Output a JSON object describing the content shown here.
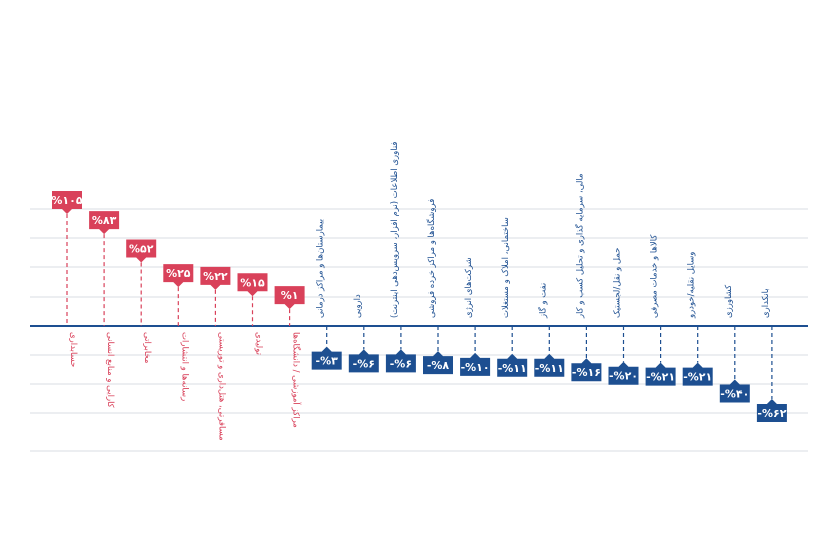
{
  "chart_data": {
    "type": "bar",
    "categories": [
      "حسابداری",
      "کارایی و منابع انسانی",
      "مخابراتی",
      "رسانه‌ها و انتشارات",
      "مسافرتی، هتل‌داری و توریستی",
      "تولیدی",
      "مراکز آموزشی / دانشگاه‌ها",
      "بیمارستان‌ها و مراکز درمانی",
      "دارویی",
      "فناوری اطلاعات (نرم افزار، سرویس‌دهی اینترنت)",
      "فروشگاه‌ها و مراکز خرده فروشی",
      "شرکت‌های انرژی",
      "ساختمانی، املاک و مستغلات",
      "نفت و گاز",
      "مالی، سرمایه گذاری و تحلیل کسب و کار",
      "حمل و نقل/لجستیک",
      "کالاها و خدمات مصرفی",
      "وسایل نقلیه/خودرو",
      "کشاورزی",
      "بانکداری"
    ],
    "values": [
      105,
      83,
      52,
      25,
      22,
      15,
      1,
      -3,
      -6,
      -6,
      -8,
      -10,
      -11,
      -11,
      -16,
      -20,
      -21,
      -21,
      -40,
      -62
    ],
    "value_labels": [
      "%۱۰۵",
      "%۸۳",
      "%۵۲",
      "%۲۵",
      "%۲۲",
      "%۱۵",
      "%۱",
      "-%۳",
      "-%۶",
      "-%۶",
      "-%۸",
      "-%۱۰",
      "-%۱۱",
      "-%۱۱",
      "-%۱۶",
      "-%۲۰",
      "-%۲۱",
      "-%۲۱",
      "-%۴۰",
      "-%۶۲"
    ],
    "colors": {
      "positive": "#d9415a",
      "negative": "#1d4f91",
      "grid": "#d9dde3",
      "baseline": "#1d4f91"
    },
    "grid": true,
    "legend": "none"
  }
}
